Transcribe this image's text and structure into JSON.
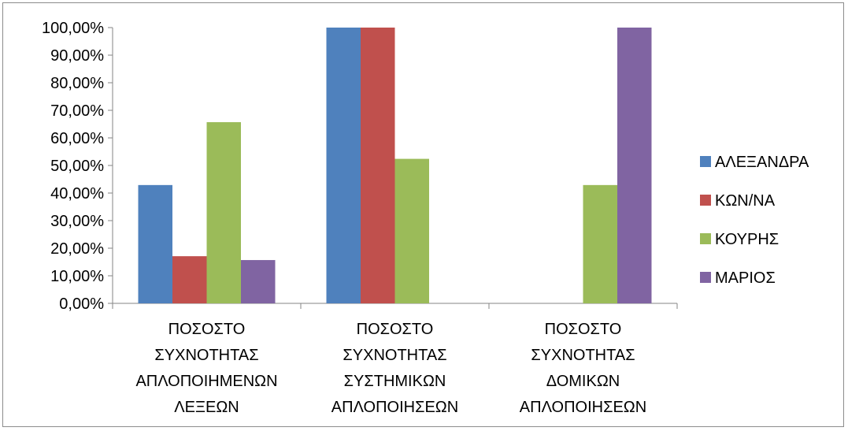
{
  "chart_data": {
    "type": "bar",
    "title": "",
    "xlabel": "",
    "ylabel": "",
    "ylim": [
      0,
      100
    ],
    "y_tick_values": [
      0,
      10,
      20,
      30,
      40,
      50,
      60,
      70,
      80,
      90,
      100
    ],
    "y_tick_labels": [
      "0,00%",
      "10,00%",
      "20,00%",
      "30,00%",
      "40,00%",
      "50,00%",
      "60,00%",
      "70,00%",
      "80,00%",
      "90,00%",
      "100,00%"
    ],
    "grid": false,
    "legend_position": "right",
    "categories": [
      [
        "ΠΟΣΟΣΤΟ",
        "ΣΥΧΝΟΤΗΤΑΣ",
        "ΑΠΛΟΠΟΙΗΜΕΝΩΝ",
        "ΛΕΞΕΩΝ"
      ],
      [
        "ΠΟΣΟΣΤΟ",
        "ΣΥΧΝΟΤΗΤΑΣ",
        "ΣΥΣΤΗΜΙΚΩΝ",
        "ΑΠΛΟΠΟΙΗΣΕΩΝ"
      ],
      [
        "ΠΟΣΟΣΤΟ",
        "ΣΥΧΝΟΤΗΤΑΣ",
        "ΔΟΜΙΚΩΝ",
        "ΑΠΛΟΠΟΙΗΣΕΩΝ"
      ]
    ],
    "series": [
      {
        "name": "ΑΛΕΞΑΝΔΡΑ",
        "color": "#4f81bd",
        "values": [
          42.9,
          100,
          0
        ]
      },
      {
        "name": "ΚΩΝ/ΝΑ",
        "color": "#c0504d",
        "values": [
          17.1,
          100,
          0
        ]
      },
      {
        "name": "ΚΟΥΡΗΣ",
        "color": "#9bbb59",
        "values": [
          65.7,
          52.4,
          42.9
        ]
      },
      {
        "name": "ΜΑΡΙΟΣ",
        "color": "#8064a2",
        "values": [
          15.7,
          0,
          100
        ]
      }
    ]
  }
}
